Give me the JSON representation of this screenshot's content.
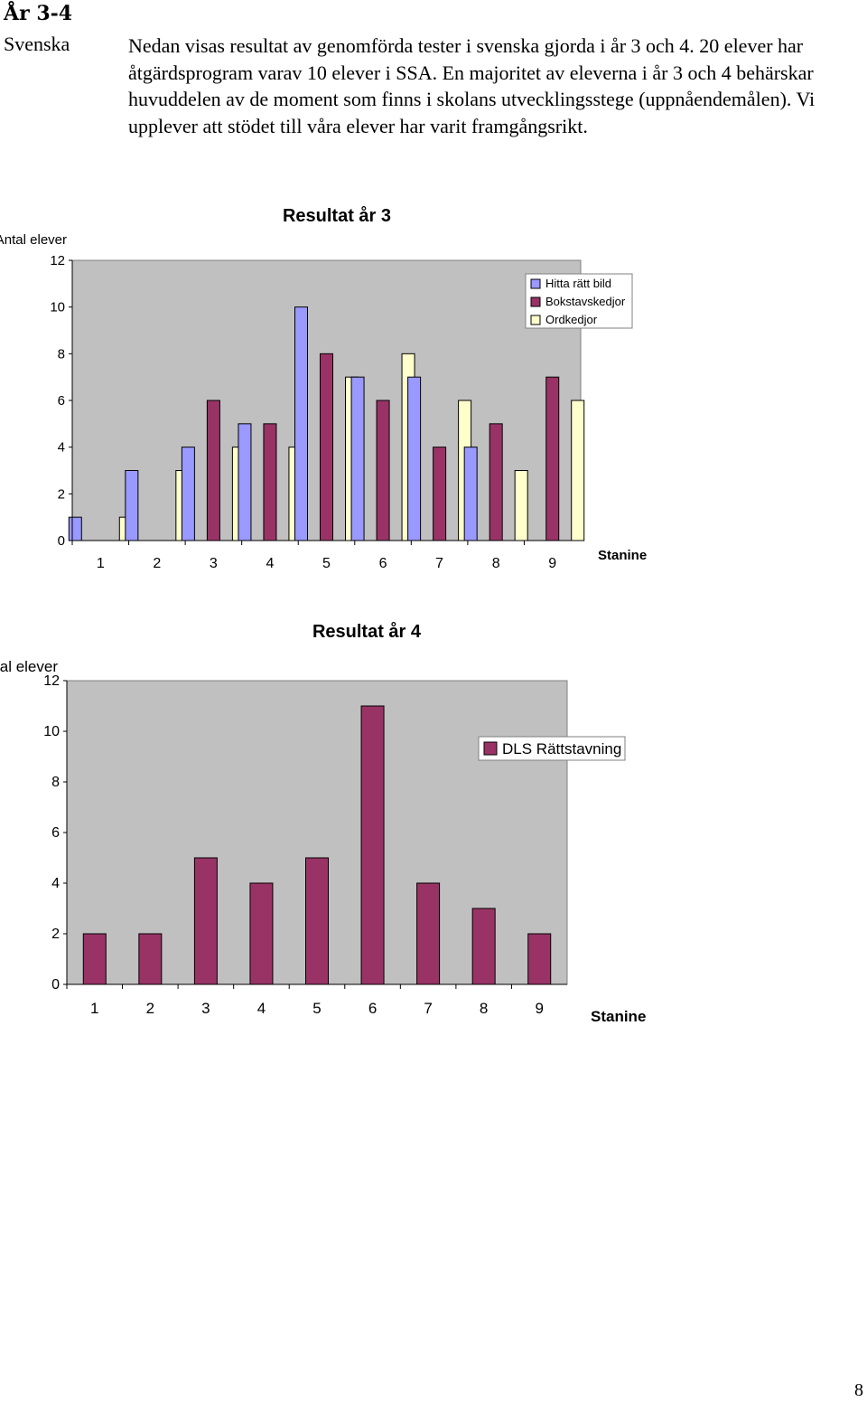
{
  "page": {
    "heading": "År 3-4",
    "subject": "Svenska",
    "paragraph": "Nedan visas resultat av genomförda tester i svenska gjorda i år 3 och 4. 20 elever har åtgärdsprogram varav 10 elever i SSA. En majoritet av eleverna i år 3 och 4 behärskar huvuddelen av de moment som finns i skolans utvecklingsstege (uppnåendemålen). Vi upplever att stödet till våra elever har varit framgångsrikt.",
    "page_number": "8"
  },
  "chart_data": [
    {
      "type": "bar",
      "title": "Resultat år 3",
      "ylabel": "Antal elever",
      "xlabel": "Stanine",
      "categories": [
        "1",
        "2",
        "3",
        "4",
        "5",
        "6",
        "7",
        "8",
        "9"
      ],
      "yticks": [
        "0",
        "2",
        "4",
        "6",
        "8",
        "10",
        "12"
      ],
      "ylim": [
        0,
        12
      ],
      "grid": false,
      "legend_position": "top-right",
      "series": [
        {
          "name": "Hitta rätt bild",
          "color": "#9999ff",
          "values": [
            1,
            3,
            4,
            5,
            10,
            7,
            7,
            4,
            0
          ]
        },
        {
          "name": "Bokstavskedjor",
          "color": "#993366",
          "values": [
            0,
            0,
            6,
            5,
            8,
            6,
            4,
            5,
            7
          ]
        },
        {
          "name": "Ordkedjor",
          "color": "#ffffcc",
          "values": [
            1,
            3,
            4,
            4,
            7,
            8,
            6,
            3,
            6
          ]
        }
      ]
    },
    {
      "type": "bar",
      "title": "Resultat år 4",
      "ylabel": "Antal elever",
      "xlabel": "Stanine",
      "categories": [
        "1",
        "2",
        "3",
        "4",
        "5",
        "6",
        "7",
        "8",
        "9"
      ],
      "yticks": [
        "0",
        "2",
        "4",
        "6",
        "8",
        "10",
        "12"
      ],
      "ylim": [
        0,
        12
      ],
      "grid": false,
      "legend_position": "right",
      "series": [
        {
          "name": "DLS Rättstavning",
          "color": "#993366",
          "values": [
            2,
            2,
            5,
            4,
            5,
            11,
            4,
            3,
            2
          ]
        }
      ]
    }
  ]
}
